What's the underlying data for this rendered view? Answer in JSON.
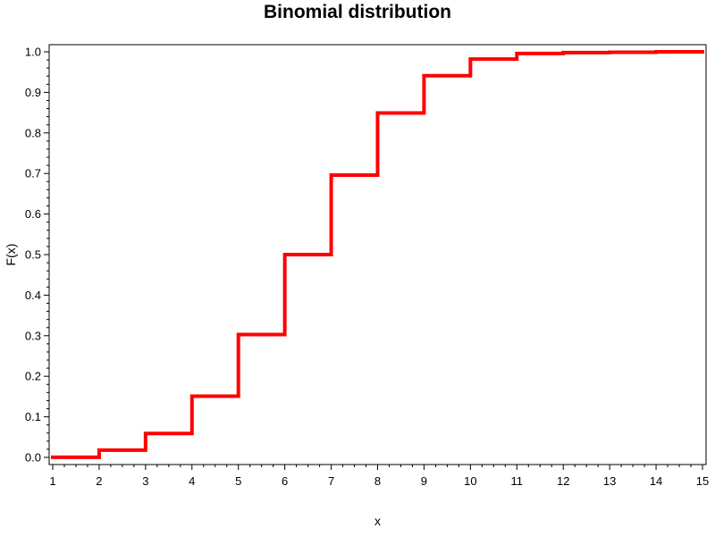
{
  "chart_data": {
    "type": "line",
    "title": "Binomial distribution",
    "xlabel": "x",
    "ylabel": "F(x)",
    "xlim": [
      1,
      15
    ],
    "ylim": [
      0,
      1
    ],
    "x_ticks": [
      1,
      2,
      3,
      4,
      5,
      6,
      7,
      8,
      9,
      10,
      11,
      12,
      13,
      14,
      15
    ],
    "y_ticks": [
      "0.0",
      "0.1",
      "0.2",
      "0.3",
      "0.4",
      "0.5",
      "0.6",
      "0.7",
      "0.8",
      "0.9",
      "1.0"
    ],
    "grid": false,
    "step": true,
    "series": [
      {
        "color": "#ff0000",
        "x": [
          1,
          2,
          3,
          4,
          5,
          6,
          7,
          8,
          9,
          10,
          11,
          12,
          13,
          14,
          15
        ],
        "y": [
          0.0002,
          0.018,
          0.059,
          0.151,
          0.303,
          0.5,
          0.696,
          0.849,
          0.941,
          0.982,
          0.996,
          0.998,
          0.999,
          1.0,
          1.0
        ]
      }
    ]
  }
}
